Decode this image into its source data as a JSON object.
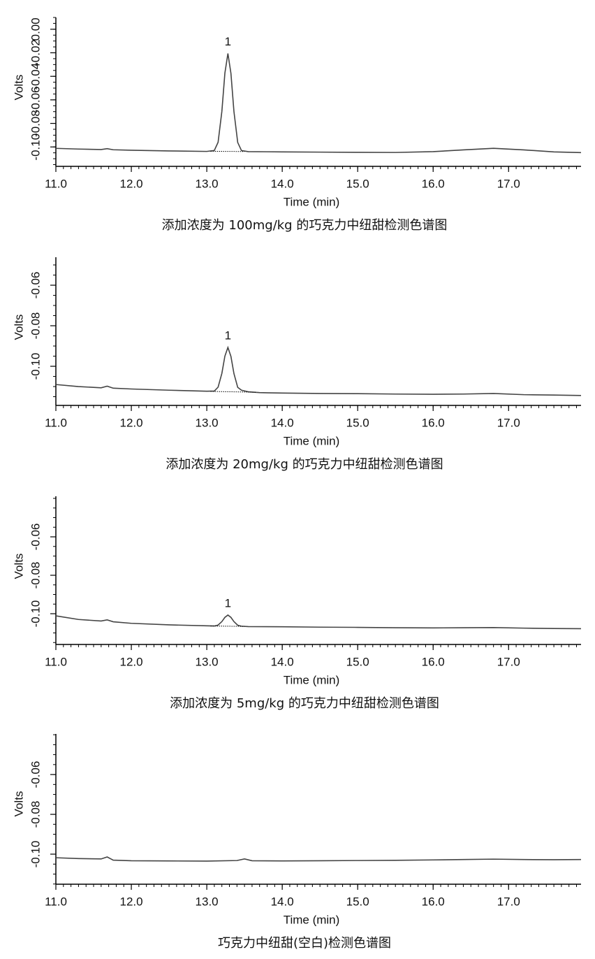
{
  "chart_data": [
    {
      "type": "line",
      "title": "添加浓度为 100mg/kg 的巧克力中纽甜检测色谱图",
      "xlabel": "Time (min)",
      "ylabel": "Volts",
      "xlim": [
        11.0,
        17.96
      ],
      "ylim": [
        -0.1165,
        0.01
      ],
      "x_minor_step": 0.1,
      "y_minor_step": 0.005,
      "xticks": [
        {
          "value": 11,
          "label": "11.0"
        },
        {
          "value": 12,
          "label": "12.0"
        },
        {
          "value": 13,
          "label": "13.0"
        },
        {
          "value": 14,
          "label": "14.0"
        },
        {
          "value": 15,
          "label": "15.0"
        },
        {
          "value": 16,
          "label": "16.0"
        },
        {
          "value": 17,
          "label": "17.0"
        }
      ],
      "yticks": [
        {
          "value": -0.1,
          "label": "-0.10"
        },
        {
          "value": -0.08,
          "label": "-0.08"
        },
        {
          "value": -0.06,
          "label": "-0.06"
        },
        {
          "value": -0.04,
          "label": "-0.04"
        },
        {
          "value": -0.02,
          "label": "-0.02"
        },
        {
          "value": 0,
          "label": "0.00"
        }
      ],
      "annotations": [
        {
          "text": "1",
          "x": 13.28
        }
      ],
      "series": [
        {
          "color": "#444444",
          "x": [
            11.0,
            11.3,
            11.6,
            11.68,
            11.76,
            12.0,
            12.5,
            13.0,
            13.1,
            13.15,
            13.2,
            13.24,
            13.28,
            13.32,
            13.36,
            13.41,
            13.46,
            13.55,
            14.0,
            14.5,
            15.0,
            15.5,
            16.0,
            16.4,
            16.8,
            17.2,
            17.6,
            17.96
          ],
          "values": [
            -0.1012,
            -0.1018,
            -0.1022,
            -0.1015,
            -0.1024,
            -0.1028,
            -0.1034,
            -0.1038,
            -0.103,
            -0.096,
            -0.0698,
            -0.0373,
            -0.0206,
            -0.0374,
            -0.0699,
            -0.0962,
            -0.1031,
            -0.104,
            -0.1042,
            -0.1044,
            -0.1046,
            -0.1047,
            -0.104,
            -0.1025,
            -0.1012,
            -0.1025,
            -0.1042,
            -0.1048
          ]
        },
        {
          "color": "#000000",
          "style": "dotted",
          "x": [
            13.05,
            13.5
          ],
          "values": [
            -0.1037,
            -0.1039
          ]
        }
      ]
    },
    {
      "type": "line",
      "title": "添加浓度为 20mg/kg 的巧克力中纽甜检测色谱图",
      "xlabel": "Time (min)",
      "ylabel": "Volts",
      "xlim": [
        11.0,
        17.96
      ],
      "ylim": [
        -0.1193,
        -0.0462
      ],
      "x_minor_step": 0.1,
      "y_minor_step": 0.005,
      "xticks": [
        {
          "value": 11,
          "label": "11.0"
        },
        {
          "value": 12,
          "label": "12.0"
        },
        {
          "value": 13,
          "label": "13.0"
        },
        {
          "value": 14,
          "label": "14.0"
        },
        {
          "value": 15,
          "label": "15.0"
        },
        {
          "value": 16,
          "label": "16.0"
        },
        {
          "value": 17,
          "label": "17.0"
        }
      ],
      "yticks": [
        {
          "value": -0.1,
          "label": "-0.10"
        },
        {
          "value": -0.08,
          "label": "-0.08"
        },
        {
          "value": -0.06,
          "label": "-0.06"
        }
      ],
      "annotations": [
        {
          "text": "1",
          "x": 13.28
        }
      ],
      "series": [
        {
          "color": "#444444",
          "x": [
            11.0,
            11.3,
            11.6,
            11.68,
            11.76,
            12.0,
            12.5,
            13.0,
            13.1,
            13.15,
            13.2,
            13.24,
            13.28,
            13.32,
            13.36,
            13.41,
            13.46,
            13.55,
            13.7,
            14.0,
            14.5,
            15.0,
            15.5,
            16.0,
            16.4,
            16.8,
            17.2,
            17.6,
            17.96
          ],
          "values": [
            -0.109,
            -0.11,
            -0.1106,
            -0.1098,
            -0.1108,
            -0.1112,
            -0.1118,
            -0.1123,
            -0.1122,
            -0.1103,
            -0.1035,
            -0.095,
            -0.0907,
            -0.0951,
            -0.1036,
            -0.1104,
            -0.1118,
            -0.1126,
            -0.113,
            -0.1132,
            -0.1134,
            -0.1135,
            -0.1137,
            -0.1138,
            -0.1137,
            -0.1134,
            -0.114,
            -0.1142,
            -0.1144
          ]
        },
        {
          "color": "#000000",
          "style": "dotted",
          "x": [
            13.05,
            13.65
          ],
          "values": [
            -0.1124,
            -0.1128
          ]
        }
      ]
    },
    {
      "type": "line",
      "title": "添加浓度为 5mg/kg 的巧克力中纽甜检测色谱图",
      "xlabel": "Time (min)",
      "ylabel": "Volts",
      "xlim": [
        11.0,
        17.96
      ],
      "ylim": [
        -0.116,
        -0.0389
      ],
      "x_minor_step": 0.1,
      "y_minor_step": 0.005,
      "xticks": [
        {
          "value": 11,
          "label": "11.0"
        },
        {
          "value": 12,
          "label": "12.0"
        },
        {
          "value": 13,
          "label": "13.0"
        },
        {
          "value": 14,
          "label": "14.0"
        },
        {
          "value": 15,
          "label": "15.0"
        },
        {
          "value": 16,
          "label": "16.0"
        },
        {
          "value": 17,
          "label": "17.0"
        }
      ],
      "yticks": [
        {
          "value": -0.1,
          "label": "-0.10"
        },
        {
          "value": -0.08,
          "label": "-0.08"
        },
        {
          "value": -0.06,
          "label": "-0.06"
        }
      ],
      "annotations": [
        {
          "text": "1",
          "x": 13.28
        }
      ],
      "series": [
        {
          "color": "#444444",
          "x": [
            11.0,
            11.3,
            11.6,
            11.68,
            11.76,
            12.0,
            12.5,
            13.0,
            13.1,
            13.15,
            13.2,
            13.24,
            13.28,
            13.32,
            13.36,
            13.41,
            13.46,
            13.55,
            14.0,
            14.5,
            15.0,
            15.5,
            16.0,
            16.4,
            16.8,
            17.2,
            17.6,
            17.96
          ],
          "values": [
            -0.1011,
            -0.103,
            -0.1038,
            -0.1032,
            -0.1042,
            -0.105,
            -0.1058,
            -0.1063,
            -0.1064,
            -0.1059,
            -0.1041,
            -0.1019,
            -0.1007,
            -0.1019,
            -0.1041,
            -0.106,
            -0.1065,
            -0.1067,
            -0.1068,
            -0.107,
            -0.1071,
            -0.1073,
            -0.1074,
            -0.1073,
            -0.1072,
            -0.1075,
            -0.1077,
            -0.1078
          ]
        },
        {
          "color": "#000000",
          "style": "dotted",
          "x": [
            13.05,
            13.5
          ],
          "values": [
            -0.1064,
            -0.1066
          ]
        }
      ]
    },
    {
      "type": "line",
      "title": "巧克力中纽甜(空白)检测色谱图",
      "xlabel": "Time (min)",
      "ylabel": "Volts",
      "xlim": [
        11.0,
        17.96
      ],
      "ylim": [
        -0.1151,
        -0.0396
      ],
      "x_minor_step": 0.1,
      "y_minor_step": 0.005,
      "xticks": [
        {
          "value": 11,
          "label": "11.0"
        },
        {
          "value": 12,
          "label": "12.0"
        },
        {
          "value": 13,
          "label": "13.0"
        },
        {
          "value": 14,
          "label": "14.0"
        },
        {
          "value": 15,
          "label": "15.0"
        },
        {
          "value": 16,
          "label": "16.0"
        },
        {
          "value": 17,
          "label": "17.0"
        }
      ],
      "yticks": [
        {
          "value": -0.1,
          "label": "-0.10"
        },
        {
          "value": -0.08,
          "label": "-0.08"
        },
        {
          "value": -0.06,
          "label": "-0.06"
        }
      ],
      "series": [
        {
          "color": "#444444",
          "x": [
            11.0,
            11.3,
            11.6,
            11.68,
            11.76,
            12.0,
            12.5,
            13.0,
            13.4,
            13.5,
            13.6,
            14.0,
            14.5,
            15.0,
            15.5,
            16.0,
            16.4,
            16.8,
            17.2,
            17.6,
            17.96
          ],
          "values": [
            -0.1018,
            -0.1022,
            -0.1024,
            -0.1014,
            -0.103,
            -0.1033,
            -0.1034,
            -0.1035,
            -0.1032,
            -0.1024,
            -0.1033,
            -0.1034,
            -0.1033,
            -0.1032,
            -0.1031,
            -0.1029,
            -0.1027,
            -0.1025,
            -0.1027,
            -0.1028,
            -0.1027
          ]
        }
      ]
    }
  ]
}
